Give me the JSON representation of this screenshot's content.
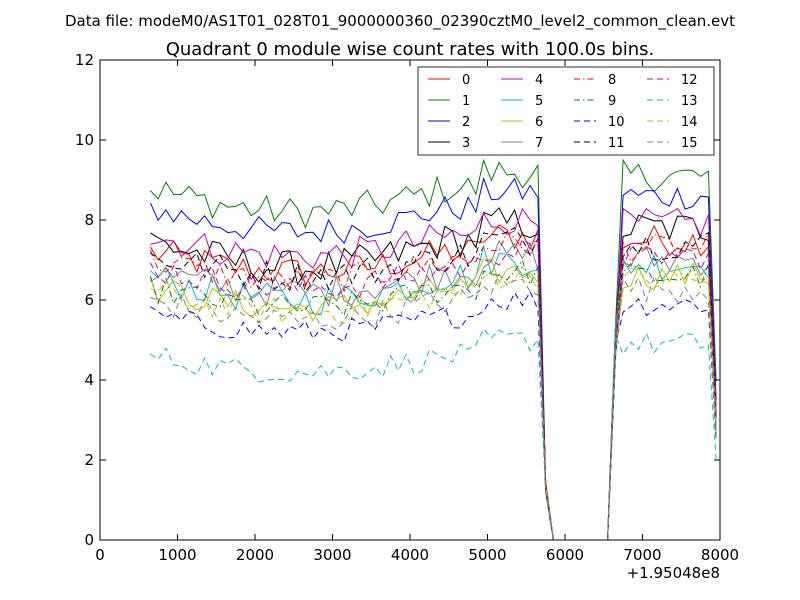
{
  "chart_data": {
    "type": "line",
    "suptitle": "Data file: modeM0/AS1T01_028T01_9000000360_02390cztM0_level2_common_clean.evt",
    "title": "Quadrant 0 module wise count rates with 100.0s bins.",
    "xlabel": "",
    "ylabel": "",
    "x_offset_label": "+1.95048e8",
    "xlim": [
      0,
      8000
    ],
    "ylim": [
      0,
      12
    ],
    "xticks": [
      0,
      1000,
      2000,
      3000,
      4000,
      5000,
      6000,
      7000,
      8000
    ],
    "yticks": [
      0,
      2,
      4,
      6,
      8,
      10,
      12
    ],
    "grid": false,
    "legend_position": "top-right",
    "colors": {
      "r": "#ff0000",
      "g": "#008000",
      "b": "#0000ff",
      "k": "#000000",
      "m": "#bf00bf",
      "c": "#00bfbf",
      "y": "#bfbf00",
      "gray": "#808080"
    },
    "series_spec": [
      {
        "name": "0",
        "base": 7.2,
        "dip": 0.5,
        "amp": 0.4,
        "color": "r",
        "dash": "solid"
      },
      {
        "name": "1",
        "base": 8.8,
        "dip": 0.6,
        "amp": 0.4,
        "color": "g",
        "dash": "solid"
      },
      {
        "name": "2",
        "base": 8.3,
        "dip": 0.6,
        "amp": 0.35,
        "color": "b",
        "dash": "solid"
      },
      {
        "name": "3",
        "base": 7.5,
        "dip": 0.7,
        "amp": 0.45,
        "color": "k",
        "dash": "solid"
      },
      {
        "name": "4",
        "base": 7.6,
        "dip": 0.5,
        "amp": 0.4,
        "color": "m",
        "dash": "solid"
      },
      {
        "name": "5",
        "base": 6.6,
        "dip": 0.6,
        "amp": 0.4,
        "color": "c",
        "dash": "solid"
      },
      {
        "name": "6",
        "base": 6.3,
        "dip": 0.5,
        "amp": 0.35,
        "color": "y",
        "dash": "solid"
      },
      {
        "name": "7",
        "base": 6.7,
        "dip": 0.5,
        "amp": 0.4,
        "color": "gray",
        "dash": "solid"
      },
      {
        "name": "8",
        "base": 7.0,
        "dip": 0.5,
        "amp": 0.35,
        "color": "r",
        "dash": "dashdot"
      },
      {
        "name": "9",
        "base": 6.3,
        "dip": 0.5,
        "amp": 0.35,
        "color": "g",
        "dash": "dashdot"
      },
      {
        "name": "10",
        "base": 5.6,
        "dip": 0.4,
        "amp": 0.3,
        "color": "b",
        "dash": "dashed"
      },
      {
        "name": "11",
        "base": 7.1,
        "dip": 0.5,
        "amp": 0.4,
        "color": "k",
        "dash": "dashed"
      },
      {
        "name": "12",
        "base": 6.8,
        "dip": 0.5,
        "amp": 0.35,
        "color": "m",
        "dash": "dashed"
      },
      {
        "name": "13",
        "base": 4.6,
        "dip": 0.4,
        "amp": 0.3,
        "color": "c",
        "dash": "dashed"
      },
      {
        "name": "14",
        "base": 6.2,
        "dip": 0.5,
        "amp": 0.35,
        "color": "y",
        "dash": "dashed"
      },
      {
        "name": "15",
        "base": 6.0,
        "dip": 0.5,
        "amp": 0.35,
        "color": "gray",
        "dash": "dashed"
      }
    ],
    "x_samples": {
      "start": 650,
      "end": 7950,
      "step": 100
    },
    "gap_profile": {
      "drop_start": 5650,
      "drop_values": [
        [
          5750,
          1.2
        ],
        [
          5850,
          0.0
        ]
      ],
      "zero_until": 6550,
      "rise_values": [
        [
          6650,
          4.5
        ],
        [
          6750,
          1.0
        ]
      ]
    },
    "end_drop_value": 0.4
  }
}
